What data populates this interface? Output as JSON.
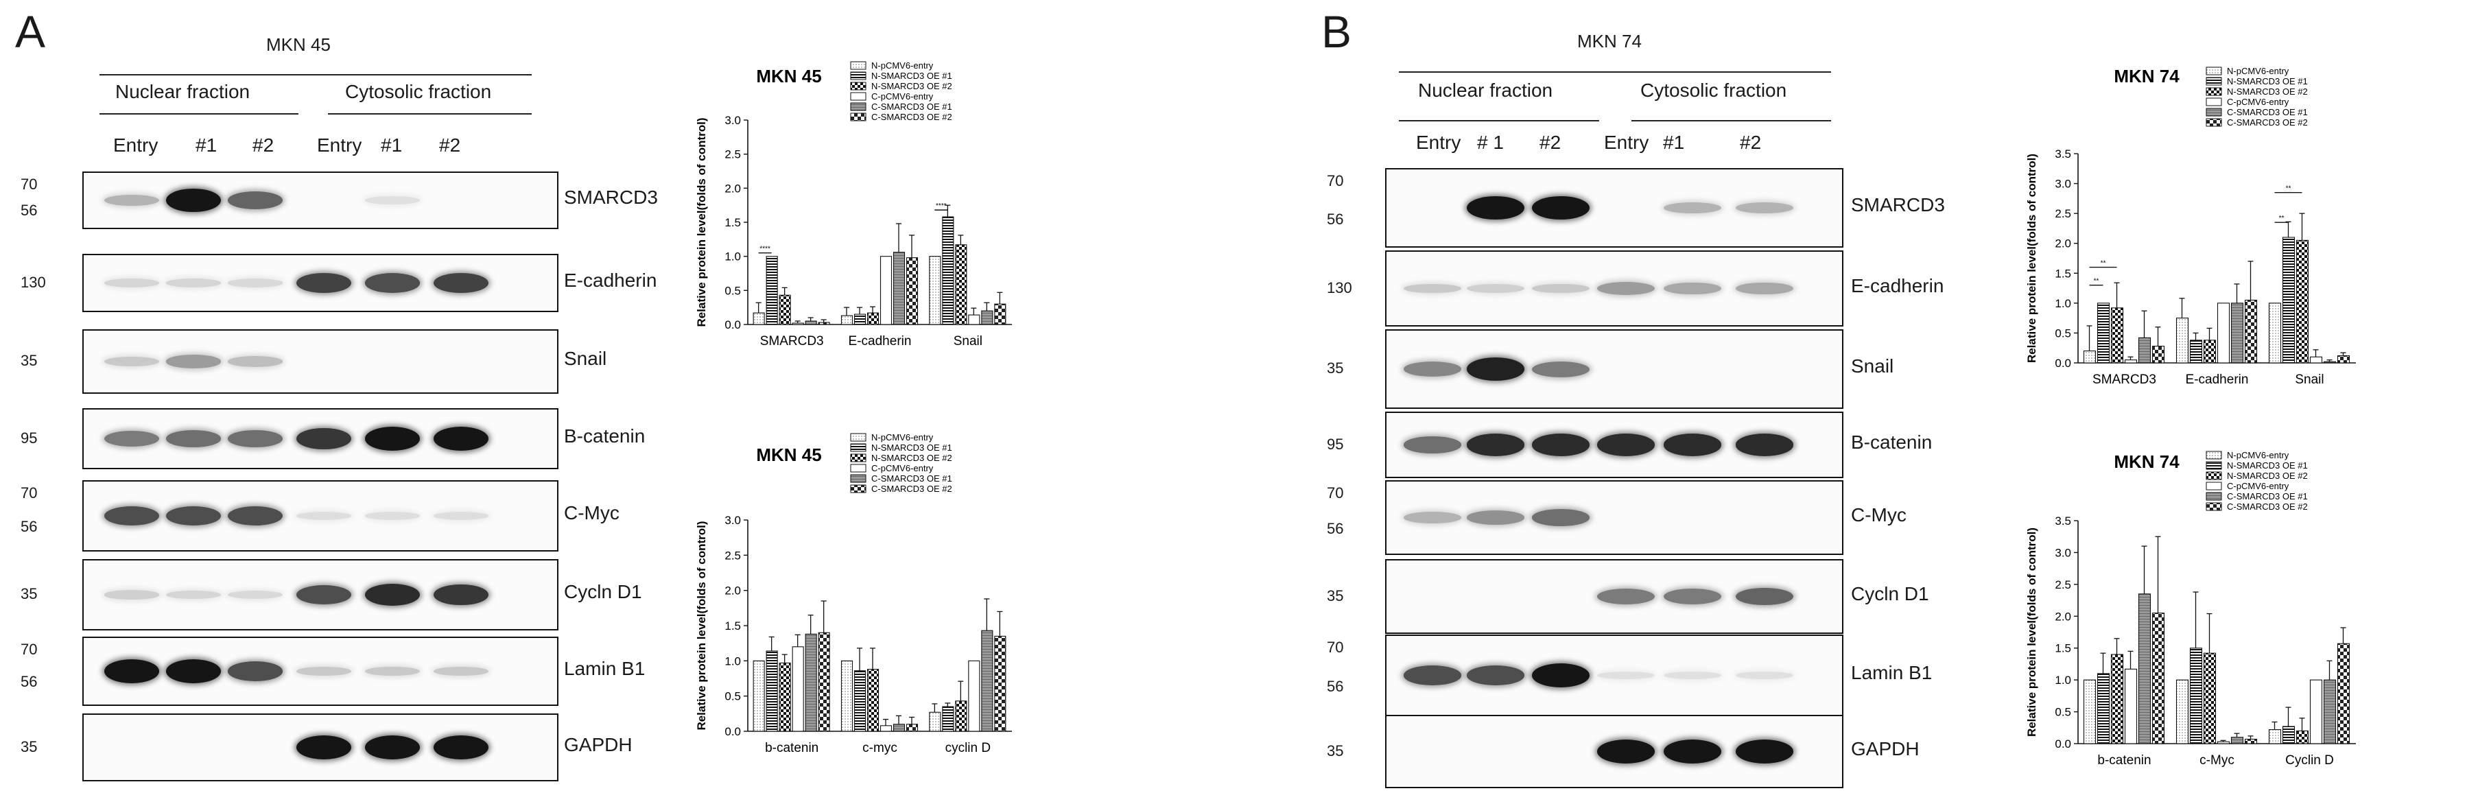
{
  "panels": [
    {
      "letter": "A",
      "cell_line": "MKN 45",
      "fractions": [
        "Nuclear fraction",
        "Cytosolic fraction"
      ],
      "lanes": [
        "Entry",
        "#1",
        "#2",
        "Entry",
        "#1",
        "#2"
      ],
      "blots": [
        {
          "protein": "SMARCD3",
          "markers": [
            "70",
            "56"
          ],
          "intensity": [
            0.25,
            0.95,
            0.6,
            0,
            0.05,
            0
          ]
        },
        {
          "protein": "E-cadherin",
          "markers": [
            "130"
          ],
          "intensity": [
            0.1,
            0.1,
            0.08,
            0.75,
            0.7,
            0.75
          ]
        },
        {
          "protein": "Snail",
          "markers": [
            "35"
          ],
          "intensity": [
            0.15,
            0.35,
            0.2,
            0,
            0,
            0
          ]
        },
        {
          "protein": "B-catenin",
          "markers": [
            "95"
          ],
          "intensity": [
            0.5,
            0.55,
            0.55,
            0.8,
            0.95,
            0.95
          ]
        },
        {
          "protein": "C-Myc",
          "markers": [
            "70",
            "56"
          ],
          "intensity": [
            0.7,
            0.7,
            0.7,
            0.06,
            0.06,
            0.06
          ]
        },
        {
          "protein": "Cycln D1",
          "markers": [
            "35"
          ],
          "intensity": [
            0.12,
            0.1,
            0.08,
            0.7,
            0.85,
            0.8
          ]
        },
        {
          "protein": "Lamin B1",
          "markers": [
            "70",
            "56"
          ],
          "intensity": [
            0.95,
            0.95,
            0.7,
            0.15,
            0.15,
            0.15
          ]
        },
        {
          "protein": "GAPDH",
          "markers": [
            "35"
          ],
          "intensity": [
            0,
            0,
            0,
            0.95,
            0.95,
            0.95
          ]
        }
      ]
    },
    {
      "letter": "B",
      "cell_line": "MKN 74",
      "fractions": [
        "Nuclear fraction",
        "Cytosolic fraction"
      ],
      "lanes": [
        "Entry",
        "# 1",
        "#2",
        "Entry",
        "#1",
        "#2"
      ],
      "blots": [
        {
          "protein": "SMARCD3",
          "markers": [
            "70",
            "56"
          ],
          "intensity": [
            0,
            0.95,
            0.95,
            0,
            0.25,
            0.25
          ]
        },
        {
          "protein": "E-cadherin",
          "markers": [
            "130"
          ],
          "intensity": [
            0.15,
            0.12,
            0.15,
            0.35,
            0.3,
            0.3
          ]
        },
        {
          "protein": "Snail",
          "markers": [
            "35"
          ],
          "intensity": [
            0.45,
            0.9,
            0.5,
            0,
            0,
            0
          ]
        },
        {
          "protein": "B-catenin",
          "markers": [
            "95"
          ],
          "intensity": [
            0.55,
            0.85,
            0.85,
            0.85,
            0.85,
            0.85
          ]
        },
        {
          "protein": "C-Myc",
          "markers": [
            "70",
            "56"
          ],
          "intensity": [
            0.25,
            0.4,
            0.55,
            0,
            0,
            0
          ]
        },
        {
          "protein": "Cycln D1",
          "markers": [
            "35"
          ],
          "intensity": [
            0,
            0,
            0,
            0.5,
            0.5,
            0.6
          ]
        },
        {
          "protein": "Lamin B1",
          "markers": [
            "70",
            "56"
          ],
          "intensity": [
            0.7,
            0.7,
            0.95,
            0.05,
            0.05,
            0.05
          ]
        },
        {
          "protein": "GAPDH",
          "markers": [
            "35"
          ],
          "intensity": [
            0,
            0,
            0,
            0.95,
            0.95,
            0.95
          ]
        }
      ]
    }
  ],
  "legend_entries": [
    "N-pCMV6-entry",
    "N-SMARCD3 OE #1",
    "N-SMARCD3 OE #2",
    "C-pCMV6-entry",
    "C-SMARCD3 OE #1",
    "C-SMARCD3 OE #2"
  ],
  "chart_data": [
    {
      "type": "bar",
      "title": "MKN 45",
      "ylabel": "Relative protein level(folds of control)",
      "ylim": [
        0,
        3.0
      ],
      "yticks": [
        "0.0",
        "0.5",
        "1.0",
        "1.5",
        "2.0",
        "2.5",
        "3.0"
      ],
      "categories": [
        "SMARCD3",
        "E-cadherin",
        "Snail"
      ],
      "significance": [
        "****",
        "****"
      ],
      "series": [
        {
          "name": "N-pCMV6-entry",
          "values": [
            0.17,
            0.13,
            1.0
          ],
          "errors": [
            0.15,
            0.12,
            0.0
          ]
        },
        {
          "name": "N-SMARCD3 OE #1",
          "values": [
            1.0,
            0.15,
            1.58
          ],
          "errors": [
            0.0,
            0.1,
            0.17
          ]
        },
        {
          "name": "N-SMARCD3 OE #2",
          "values": [
            0.43,
            0.17,
            1.17
          ],
          "errors": [
            0.11,
            0.09,
            0.14
          ]
        },
        {
          "name": "C-pCMV6-entry",
          "values": [
            0.02,
            1.0,
            0.14
          ],
          "errors": [
            0.03,
            0.0,
            0.1
          ]
        },
        {
          "name": "C-SMARCD3 OE #1",
          "values": [
            0.05,
            1.06,
            0.2
          ],
          "errors": [
            0.05,
            0.42,
            0.12
          ]
        },
        {
          "name": "C-SMARCD3 OE #2",
          "values": [
            0.03,
            0.98,
            0.3
          ],
          "errors": [
            0.04,
            0.33,
            0.17
          ]
        }
      ]
    },
    {
      "type": "bar",
      "title": "MKN 45",
      "ylabel": "Relative protein level(folds of control)",
      "ylim": [
        0,
        3.0
      ],
      "yticks": [
        "0.0",
        "0.5",
        "1.0",
        "1.5",
        "2.0",
        "2.5",
        "3.0"
      ],
      "categories": [
        "b-catenin",
        "c-myc",
        "cyclin D"
      ],
      "series": [
        {
          "name": "N-pCMV6-entry",
          "values": [
            1.0,
            1.0,
            0.27
          ],
          "errors": [
            0.0,
            0.0,
            0.12
          ]
        },
        {
          "name": "N-SMARCD3 OE #1",
          "values": [
            1.14,
            0.86,
            0.35
          ],
          "errors": [
            0.2,
            0.32,
            0.05
          ]
        },
        {
          "name": "N-SMARCD3 OE #2",
          "values": [
            0.97,
            0.88,
            0.43
          ],
          "errors": [
            0.12,
            0.3,
            0.28
          ]
        },
        {
          "name": "C-pCMV6-entry",
          "values": [
            1.2,
            0.08,
            1.0
          ],
          "errors": [
            0.17,
            0.09,
            0.0
          ]
        },
        {
          "name": "C-SMARCD3 OE #1",
          "values": [
            1.38,
            0.1,
            1.43
          ],
          "errors": [
            0.27,
            0.12,
            0.45
          ]
        },
        {
          "name": "C-SMARCD3 OE #2",
          "values": [
            1.4,
            0.1,
            1.35
          ],
          "errors": [
            0.45,
            0.1,
            0.35
          ]
        }
      ]
    },
    {
      "type": "bar",
      "title": "MKN 74",
      "ylabel": "Relative protein level(folds of control)",
      "ylim": [
        0,
        3.5
      ],
      "yticks": [
        "0.0",
        "0.5",
        "1.0",
        "1.5",
        "2.0",
        "2.5",
        "3.0",
        "3.5"
      ],
      "categories": [
        "SMARCD3",
        "E-cadherin",
        "Snail"
      ],
      "significance": [
        "**",
        "**",
        "**",
        "**"
      ],
      "series": [
        {
          "name": "N-pCMV6-entry",
          "values": [
            0.2,
            0.75,
            1.0
          ],
          "errors": [
            0.42,
            0.33,
            0.0
          ]
        },
        {
          "name": "N-SMARCD3 OE #1",
          "values": [
            1.0,
            0.38,
            2.1
          ],
          "errors": [
            0.0,
            0.12,
            0.26
          ]
        },
        {
          "name": "N-SMARCD3 OE #2",
          "values": [
            0.92,
            0.38,
            2.05
          ],
          "errors": [
            0.42,
            0.2,
            0.45
          ]
        },
        {
          "name": "C-pCMV6-entry",
          "values": [
            0.05,
            1.0,
            0.1
          ],
          "errors": [
            0.05,
            0.0,
            0.12
          ]
        },
        {
          "name": "C-SMARCD3 OE #1",
          "values": [
            0.42,
            1.0,
            0.02
          ],
          "errors": [
            0.45,
            0.32,
            0.03
          ]
        },
        {
          "name": "C-SMARCD3 OE #2",
          "values": [
            0.28,
            1.05,
            0.12
          ],
          "errors": [
            0.32,
            0.65,
            0.05
          ]
        }
      ]
    },
    {
      "type": "bar",
      "title": "MKN 74",
      "ylabel": "Relative protein level(folds of control)",
      "ylim": [
        0,
        3.5
      ],
      "yticks": [
        "0.0",
        "0.5",
        "1.0",
        "1.5",
        "2.0",
        "2.5",
        "3.0",
        "3.5"
      ],
      "categories": [
        "b-catenin",
        "c-Myc",
        "Cyclin D"
      ],
      "series": [
        {
          "name": "N-pCMV6-entry",
          "values": [
            1.0,
            1.0,
            0.22
          ],
          "errors": [
            0.0,
            0.0,
            0.12
          ]
        },
        {
          "name": "N-SMARCD3 OE #1",
          "values": [
            1.1,
            1.5,
            0.27
          ],
          "errors": [
            0.32,
            0.88,
            0.3
          ]
        },
        {
          "name": "N-SMARCD3 OE #2",
          "values": [
            1.4,
            1.42,
            0.2
          ],
          "errors": [
            0.25,
            0.62,
            0.2
          ]
        },
        {
          "name": "C-pCMV6-entry",
          "values": [
            1.17,
            0.03,
            1.0
          ],
          "errors": [
            0.28,
            0.02,
            0.0
          ]
        },
        {
          "name": "C-SMARCD3 OE #1",
          "values": [
            2.35,
            0.1,
            1.0
          ],
          "errors": [
            0.75,
            0.06,
            0.3
          ]
        },
        {
          "name": "C-SMARCD3 OE #2",
          "values": [
            2.05,
            0.07,
            1.57
          ],
          "errors": [
            1.2,
            0.05,
            0.25
          ]
        }
      ]
    }
  ]
}
